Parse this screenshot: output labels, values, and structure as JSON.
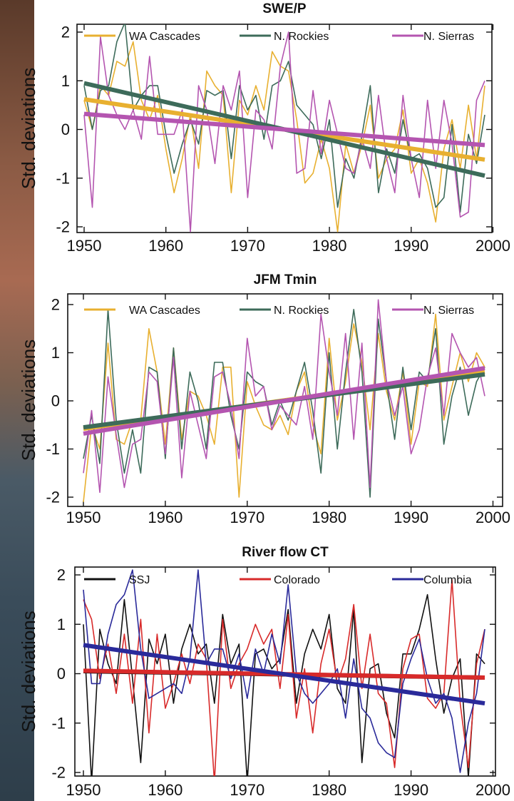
{
  "chart_data": [
    {
      "type": "line",
      "title": "SWE/P",
      "ylabel": "Std. deviations",
      "xlim": [
        1950,
        2000
      ],
      "ylim": [
        -2.15,
        2.15
      ],
      "x_ticks": [
        "1950",
        "1960",
        "1970",
        "1980",
        "1990",
        "2000"
      ],
      "y_ticks": [
        "2",
        "1",
        "0",
        "-1",
        "-2"
      ],
      "legend_placement": "top",
      "x": [
        1950,
        1951,
        1952,
        1953,
        1954,
        1955,
        1956,
        1957,
        1958,
        1959,
        1960,
        1961,
        1962,
        1963,
        1964,
        1965,
        1966,
        1967,
        1968,
        1969,
        1970,
        1971,
        1972,
        1973,
        1974,
        1975,
        1976,
        1977,
        1978,
        1979,
        1980,
        1981,
        1982,
        1983,
        1984,
        1985,
        1986,
        1987,
        1988,
        1989,
        1990,
        1991,
        1992,
        1993,
        1994,
        1995,
        1996,
        1997,
        1998,
        1999
      ],
      "series": [
        {
          "name": "WA Cascades",
          "color": "#e8b030",
          "values": [
            0.6,
            0.0,
            0.9,
            0.7,
            1.4,
            1.3,
            1.8,
            0.6,
            0.2,
            0.7,
            -0.4,
            -1.3,
            -0.6,
            0.3,
            -0.8,
            1.2,
            0.9,
            0.7,
            -1.3,
            0.6,
            0.3,
            0.9,
            0.4,
            1.6,
            1.3,
            1.2,
            0.2,
            -1.1,
            -0.9,
            -0.2,
            -0.8,
            -2.1,
            -0.3,
            -0.9,
            -0.3,
            0.5,
            -1.0,
            -0.6,
            -0.4,
            0.4,
            -0.9,
            -0.6,
            -1.1,
            -1.9,
            -0.4,
            0.2,
            -0.8,
            0.5,
            -0.6,
            0.9
          ],
          "trend": [
            0.62,
            -0.62
          ]
        },
        {
          "name": "N. Rockies",
          "color": "#3d6b5a",
          "values": [
            0.9,
            0.0,
            0.8,
            0.9,
            1.8,
            2.2,
            0.4,
            0.7,
            0.9,
            0.9,
            -0.1,
            -0.9,
            -0.3,
            0.2,
            -0.3,
            0.8,
            0.7,
            0.8,
            -0.6,
            0.9,
            0.4,
            0.7,
            -0.2,
            0.9,
            1.0,
            1.4,
            0.5,
            0.3,
            0.1,
            -0.6,
            0.2,
            -1.6,
            -0.6,
            -1.0,
            -0.1,
            0.9,
            -1.3,
            -0.4,
            -0.9,
            0.2,
            -0.6,
            -0.5,
            -0.8,
            -1.6,
            -1.4,
            0.1,
            -1.7,
            -0.1,
            -0.7,
            0.3
          ],
          "trend": [
            0.95,
            -0.95
          ]
        },
        {
          "name": "N. Sierras",
          "color": "#b455b0",
          "values": [
            0.3,
            -1.6,
            1.9,
            0.7,
            0.3,
            0.0,
            0.4,
            -0.2,
            1.5,
            -0.1,
            -0.1,
            -0.1,
            0.4,
            -2.1,
            0.9,
            0.4,
            -0.7,
            0.9,
            0.4,
            1.2,
            -1.4,
            0.4,
            0.2,
            -0.4,
            1.3,
            2.0,
            -0.9,
            -0.8,
            0.8,
            -0.5,
            0.6,
            -0.1,
            -0.8,
            -0.9,
            -0.2,
            -0.8,
            0.7,
            -0.6,
            -1.3,
            0.7,
            -0.6,
            -1.4,
            0.6,
            -0.8,
            0.6,
            -0.3,
            -1.8,
            -1.7,
            0.6,
            1.0
          ],
          "trend": [
            0.32,
            -0.32
          ]
        }
      ]
    },
    {
      "type": "line",
      "title": "JFM Tmin",
      "ylabel": "Std. deviations",
      "xlim": [
        1949,
        2001
      ],
      "ylim": [
        -2.15,
        2.15
      ],
      "x_ticks": [
        "1950",
        "1960",
        "1970",
        "1980",
        "1990",
        "2000"
      ],
      "y_ticks": [
        "2",
        "1",
        "0",
        "-1",
        "-2"
      ],
      "legend_placement": "top",
      "x": [
        1950,
        1951,
        1952,
        1953,
        1954,
        1955,
        1956,
        1957,
        1958,
        1959,
        1960,
        1961,
        1962,
        1963,
        1964,
        1965,
        1966,
        1967,
        1968,
        1969,
        1970,
        1971,
        1972,
        1973,
        1974,
        1975,
        1976,
        1977,
        1978,
        1979,
        1980,
        1981,
        1982,
        1983,
        1984,
        1985,
        1986,
        1987,
        1988,
        1989,
        1990,
        1991,
        1992,
        1993,
        1994,
        1995,
        1996,
        1997,
        1998,
        1999
      ],
      "series": [
        {
          "name": "WA Cascades",
          "color": "#e8b030",
          "values": [
            -2.1,
            -0.5,
            -1.0,
            1.2,
            -0.8,
            -0.9,
            -0.4,
            -0.4,
            1.5,
            0.6,
            -0.9,
            1.1,
            -0.8,
            0.2,
            0.1,
            -0.3,
            -0.9,
            0.7,
            0.7,
            -2.0,
            0.4,
            -0.1,
            -0.5,
            -0.6,
            -0.3,
            -0.7,
            0.2,
            0.6,
            -0.5,
            -1.1,
            1.3,
            -0.4,
            0.4,
            1.6,
            0.8,
            -0.6,
            1.4,
            0.2,
            -0.4,
            0.6,
            -0.9,
            0.4,
            0.3,
            1.8,
            -0.4,
            0.3,
            1.0,
            0.4,
            1.0,
            0.7
          ],
          "trend": [
            -0.58,
            0.6
          ]
        },
        {
          "name": "N. Rockies",
          "color": "#3d6b5a",
          "values": [
            -1.2,
            -0.3,
            -1.3,
            1.9,
            -0.4,
            -1.5,
            -0.6,
            -1.5,
            0.7,
            0.6,
            -1.2,
            1.1,
            -1.0,
            0.6,
            0.0,
            -1.0,
            0.8,
            0.8,
            -0.3,
            -1.0,
            0.6,
            0.4,
            0.3,
            -0.5,
            0.0,
            -0.4,
            0.2,
            0.8,
            -0.2,
            -1.5,
            1.0,
            -1.0,
            0.6,
            1.9,
            0.6,
            -2.0,
            1.7,
            0.4,
            -0.8,
            0.7,
            -0.6,
            0.6,
            0.4,
            1.5,
            -0.9,
            0.1,
            0.7,
            -0.3,
            0.4,
            0.7
          ],
          "trend": [
            -0.55,
            0.55
          ]
        },
        {
          "name": "N. Sierras",
          "color": "#b455b0",
          "values": [
            -1.5,
            -0.2,
            -1.9,
            0.5,
            -0.7,
            -1.8,
            -0.9,
            -0.8,
            0.6,
            0.4,
            -1.1,
            0.9,
            -1.6,
            0.2,
            -0.5,
            -1.2,
            0.5,
            0.6,
            -0.1,
            -1.2,
            1.3,
            0.1,
            0.3,
            -0.6,
            -0.1,
            -0.3,
            -0.5,
            0.3,
            -0.8,
            1.8,
            0.6,
            -0.3,
            1.4,
            -0.8,
            1.2,
            -1.8,
            2.1,
            0.4,
            -0.3,
            0.3,
            -1.1,
            -0.6,
            0.5,
            1.1,
            -0.3,
            1.4,
            1.0,
            0.7,
            0.9,
            0.1
          ],
          "trend": [
            -0.68,
            0.68
          ]
        }
      ]
    },
    {
      "type": "line",
      "title": "River flow CT",
      "ylabel": "Std. deviations",
      "xlim": [
        1948,
        2001
      ],
      "ylim": [
        -2.15,
        2.15
      ],
      "x_ticks": [
        "1950",
        "1960",
        "1970",
        "1980",
        "1990",
        "2000"
      ],
      "y_ticks": [
        "2",
        "1",
        "0",
        "-1",
        "-2"
      ],
      "legend_placement": "top",
      "x": [
        1950,
        1951,
        1952,
        1953,
        1954,
        1955,
        1956,
        1957,
        1958,
        1959,
        1960,
        1961,
        1962,
        1963,
        1964,
        1965,
        1966,
        1967,
        1968,
        1969,
        1970,
        1971,
        1972,
        1973,
        1974,
        1975,
        1976,
        1977,
        1978,
        1979,
        1980,
        1981,
        1982,
        1983,
        1984,
        1985,
        1986,
        1987,
        1988,
        1989,
        1990,
        1991,
        1992,
        1993,
        1994,
        1995,
        1996,
        1997,
        1998,
        1999
      ],
      "series": [
        {
          "name": "SSJ",
          "color": "#111111",
          "values": [
            1.0,
            -2.2,
            0.9,
            0.2,
            -0.2,
            1.5,
            -0.1,
            -1.8,
            0.7,
            0.2,
            0.8,
            -0.6,
            0.5,
            1.0,
            0.4,
            0.6,
            -0.6,
            1.2,
            0.2,
            0.6,
            -2.2,
            0.4,
            0.5,
            0.1,
            0.3,
            1.3,
            -0.6,
            0.4,
            0.9,
            0.5,
            1.2,
            -0.3,
            -0.6,
            1.3,
            -1.8,
            0.1,
            0.2,
            -0.8,
            -1.3,
            0.4,
            0.4,
            0.9,
            1.6,
            0.3,
            -0.8,
            -0.1,
            0.3,
            -2.1,
            0.4,
            0.2
          ],
          "trend": [
            0.05,
            -0.08
          ]
        },
        {
          "name": "Colorado",
          "color": "#d82a2a",
          "values": [
            1.5,
            1.1,
            -0.1,
            0.6,
            -0.4,
            0.8,
            -0.6,
            1.1,
            -1.2,
            0.8,
            -0.7,
            -0.2,
            0.4,
            -0.2,
            0.6,
            0.3,
            -2.2,
            1.1,
            -0.3,
            0.2,
            0.5,
            1.0,
            0.6,
            0.9,
            -0.3,
            1.2,
            -0.9,
            0.1,
            -1.2,
            0.2,
            0.9,
            -0.2,
            0.3,
            1.4,
            -0.3,
            0.8,
            -0.4,
            -0.6,
            -1.9,
            0.1,
            0.7,
            0.8,
            -0.5,
            -0.7,
            -0.4,
            1.9,
            -0.6,
            -1.9,
            0.2,
            0.9
          ],
          "trend": [
            0.06,
            -0.08
          ]
        },
        {
          "name": "Columbia",
          "color": "#2a2a9a",
          "values": [
            1.7,
            -0.2,
            -0.2,
            0.8,
            1.4,
            1.6,
            2.1,
            0.5,
            -0.5,
            -0.4,
            -0.3,
            -0.2,
            -0.4,
            0.3,
            2.1,
            0.2,
            0.5,
            0.5,
            -0.1,
            0.4,
            -0.5,
            0.5,
            0.0,
            0.8,
            0.2,
            1.8,
            0.0,
            -0.4,
            -0.6,
            -0.4,
            -0.2,
            0.1,
            -0.9,
            0.3,
            -0.7,
            -0.9,
            -1.4,
            -1.6,
            -1.7,
            -0.2,
            0.3,
            0.7,
            -0.1,
            -0.6,
            -0.4,
            -0.9,
            -2.0,
            -1.0,
            -0.4,
            0.9
          ],
          "trend": [
            0.58,
            -0.6
          ]
        }
      ]
    }
  ]
}
